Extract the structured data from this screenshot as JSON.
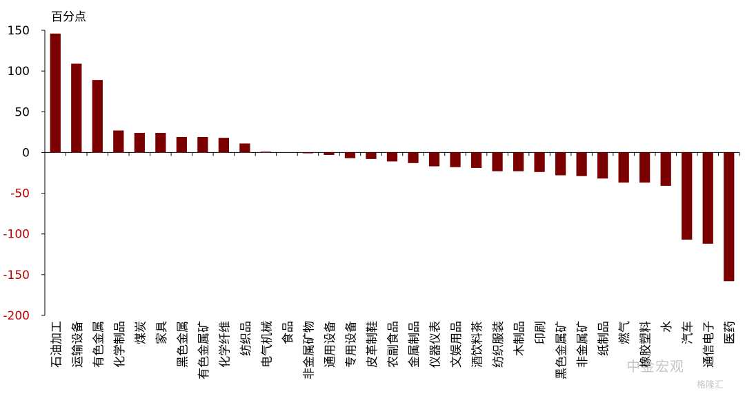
{
  "chart_data": {
    "type": "bar",
    "ylabel": "百分点",
    "ylim": [
      -200,
      150
    ],
    "yticks": [
      150,
      100,
      50,
      0,
      -50,
      -100,
      -150,
      -200
    ],
    "bar_color": "#7b0000",
    "positive_tick_color": "#000000",
    "negative_tick_color": "#c00000",
    "grid": false,
    "categories": [
      "石油加工",
      "运输设备",
      "有色金属",
      "化学制品",
      "煤炭",
      "家具",
      "黑色金属",
      "有色金属矿",
      "化学纤维",
      "纺织品",
      "电气机械",
      "食品",
      "非金属矿物",
      "通用设备",
      "专用设备",
      "皮革制鞋",
      "农副食品",
      "金属制品",
      "仪器仪表",
      "文娱用品",
      "酒饮料茶",
      "纺织服装",
      "木制品",
      "印刷",
      "黑色金属矿",
      "非金属矿",
      "纸制品",
      "燃气",
      "橡胶塑料",
      "水",
      "汽车",
      "通信电子",
      "医药"
    ],
    "values": [
      146,
      109,
      89,
      27,
      24,
      24,
      19,
      19,
      18,
      11,
      1,
      0,
      -1,
      -3,
      -7,
      -8,
      -11,
      -13,
      -17,
      -18,
      -19,
      -23,
      -23,
      -24,
      -28,
      -29,
      -32,
      -37,
      -37,
      -41,
      -107,
      -112,
      -158
    ]
  },
  "watermark": {
    "text1": "中金宏观",
    "text2": "格隆汇"
  }
}
